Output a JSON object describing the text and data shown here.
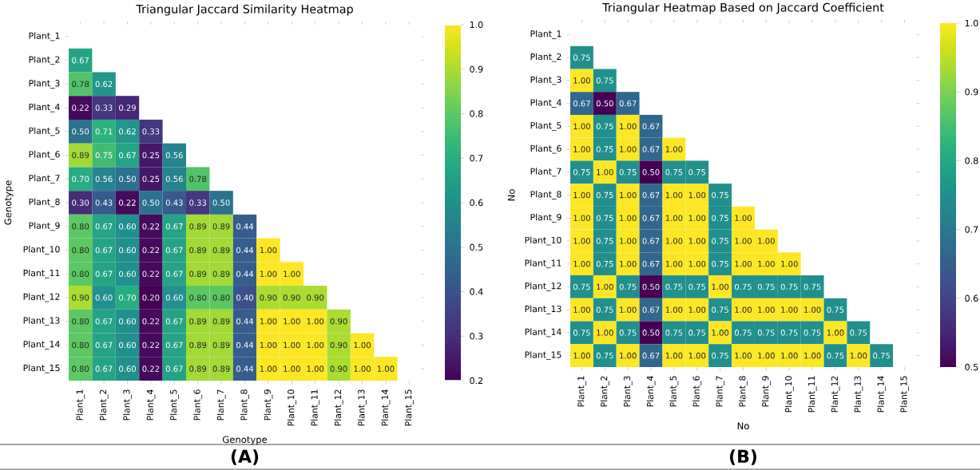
{
  "chart_data": [
    {
      "type": "heatmap",
      "title": "Triangular Jaccard Similarity Heatmap",
      "xlabel": "Genotype",
      "ylabel": "Genotype",
      "categories": [
        "Plant_1",
        "Plant_2",
        "Plant_3",
        "Plant_4",
        "Plant_5",
        "Plant_6",
        "Plant_7",
        "Plant_8",
        "Plant_9",
        "Plant_10",
        "Plant_11",
        "Plant_12",
        "Plant_13",
        "Plant_14",
        "Plant_15"
      ],
      "y_categories": [
        "Plant_1",
        "Plant_2",
        "Plant_3",
        "Plant_4",
        "Plant_5",
        "Plant_6",
        "Plant_7",
        "Plant_8",
        "Plant_9",
        "Plant_10",
        "Plant_11",
        "Plant_12",
        "Plant_13",
        "Plant_14",
        "Plant_15"
      ],
      "cells": [
        [
          null,
          null,
          null,
          null,
          null,
          null,
          null,
          null,
          null,
          null,
          null,
          null,
          null,
          null,
          null
        ],
        [
          0.67,
          null,
          null,
          null,
          null,
          null,
          null,
          null,
          null,
          null,
          null,
          null,
          null,
          null,
          null
        ],
        [
          0.78,
          0.62,
          null,
          null,
          null,
          null,
          null,
          null,
          null,
          null,
          null,
          null,
          null,
          null,
          null
        ],
        [
          0.22,
          0.33,
          0.29,
          null,
          null,
          null,
          null,
          null,
          null,
          null,
          null,
          null,
          null,
          null,
          null
        ],
        [
          0.5,
          0.71,
          0.62,
          0.33,
          null,
          null,
          null,
          null,
          null,
          null,
          null,
          null,
          null,
          null,
          null
        ],
        [
          0.89,
          0.75,
          0.67,
          0.25,
          0.56,
          null,
          null,
          null,
          null,
          null,
          null,
          null,
          null,
          null,
          null
        ],
        [
          0.7,
          0.56,
          0.5,
          0.25,
          0.56,
          0.78,
          null,
          null,
          null,
          null,
          null,
          null,
          null,
          null,
          null
        ],
        [
          0.3,
          0.43,
          0.22,
          0.5,
          0.43,
          0.33,
          0.5,
          null,
          null,
          null,
          null,
          null,
          null,
          null,
          null
        ],
        [
          0.8,
          0.67,
          0.6,
          0.22,
          0.67,
          0.89,
          0.89,
          0.44,
          null,
          null,
          null,
          null,
          null,
          null,
          null
        ],
        [
          0.8,
          0.67,
          0.6,
          0.22,
          0.67,
          0.89,
          0.89,
          0.44,
          1.0,
          null,
          null,
          null,
          null,
          null,
          null
        ],
        [
          0.8,
          0.67,
          0.6,
          0.22,
          0.67,
          0.89,
          0.89,
          0.44,
          1.0,
          1.0,
          null,
          null,
          null,
          null,
          null
        ],
        [
          0.9,
          0.6,
          0.7,
          0.2,
          0.6,
          0.8,
          0.8,
          0.4,
          0.9,
          0.9,
          0.9,
          null,
          null,
          null,
          null
        ],
        [
          0.8,
          0.67,
          0.6,
          0.22,
          0.67,
          0.89,
          0.89,
          0.44,
          1.0,
          1.0,
          1.0,
          0.9,
          null,
          null,
          null
        ],
        [
          0.8,
          0.67,
          0.6,
          0.22,
          0.67,
          0.89,
          0.89,
          0.44,
          1.0,
          1.0,
          1.0,
          0.9,
          1.0,
          null,
          null
        ],
        [
          0.8,
          0.67,
          0.6,
          0.22,
          0.67,
          0.89,
          0.89,
          0.44,
          1.0,
          1.0,
          1.0,
          0.9,
          1.0,
          1.0,
          null
        ]
      ],
      "cell_labels": [
        [
          null,
          null,
          null,
          null,
          null,
          null,
          null,
          null,
          null,
          null,
          null,
          null,
          null,
          null,
          null
        ],
        [
          "0.67",
          null,
          null,
          null,
          null,
          null,
          null,
          null,
          null,
          null,
          null,
          null,
          null,
          null,
          null
        ],
        [
          "0.78",
          "0.62",
          null,
          null,
          null,
          null,
          null,
          null,
          null,
          null,
          null,
          null,
          null,
          null,
          null
        ],
        [
          "0.22",
          "0.33",
          "0.29",
          null,
          null,
          null,
          null,
          null,
          null,
          null,
          null,
          null,
          null,
          null,
          null
        ],
        [
          "0.50",
          "0.71",
          "0.62",
          "0.33",
          null,
          null,
          null,
          null,
          null,
          null,
          null,
          null,
          null,
          null,
          null
        ],
        [
          "0.89",
          "0.75",
          "0.67",
          "0.25",
          "0.56",
          null,
          null,
          null,
          null,
          null,
          null,
          null,
          null,
          null,
          null
        ],
        [
          "0.70",
          "0.56",
          "0.50",
          "0.25",
          "0.56",
          "0.78",
          null,
          null,
          null,
          null,
          null,
          null,
          null,
          null,
          null
        ],
        [
          "0.30",
          "0.43",
          "0.22",
          "0.50",
          "0.43",
          "0.33",
          "0.50",
          null,
          null,
          null,
          null,
          null,
          null,
          null,
          null
        ],
        [
          "0.80",
          "0.67",
          "0.60",
          "0.22",
          "0.67",
          "0.89",
          "0.89",
          "0.44",
          null,
          null,
          null,
          null,
          null,
          null,
          null
        ],
        [
          "0.80",
          "0.67",
          "0.60",
          "0.22",
          "0.67",
          "0.89",
          "0.89",
          "0.44",
          "1.00",
          null,
          null,
          null,
          null,
          null,
          null
        ],
        [
          "0.80",
          "0.67",
          "0.60",
          "0.22",
          "0.67",
          "0.89",
          "0.89",
          "0.44",
          "1.00",
          "1.00",
          null,
          null,
          null,
          null,
          null
        ],
        [
          "0.90",
          "0.60",
          "0.70",
          "0.20",
          "0.60",
          "0.80",
          "0.80",
          "0.40",
          "0.90",
          "0.90",
          "0.90",
          null,
          null,
          null,
          null
        ],
        [
          "0.80",
          "0.67",
          "0.60",
          "0.22",
          "0.67",
          "0.89",
          "0.89",
          "0.44",
          "1.00",
          "1.00",
          "1.00",
          "0.90",
          null,
          null,
          null
        ],
        [
          "0.80",
          "0.67",
          "0.60",
          "0.22",
          "0.67",
          "0.89",
          "0.89",
          "0.44",
          "1.00",
          "1.00",
          "1.00",
          "0.90",
          "1.00",
          null,
          null
        ],
        [
          "0.80",
          "0.67",
          "0.60",
          "0.22",
          "0.67",
          "0.89",
          "0.89",
          "0.44",
          "1.00",
          "1.00",
          "1.00",
          "0.90",
          "1.00",
          "1.00",
          null
        ]
      ],
      "clim": [
        0.2,
        1.0
      ],
      "cticks": [
        0.2,
        0.3,
        0.4,
        0.5,
        0.6,
        0.7,
        0.8,
        0.9,
        {
          "value": 1.0,
          "label": "1.0"
        }
      ],
      "annotations": [
        "(A)"
      ]
    },
    {
      "type": "heatmap",
      "title": "Triangular Heatmap Based on Jaccard Coefficient",
      "xlabel": "No",
      "ylabel": "No",
      "categories": [
        "Plant_1",
        "Plant_2",
        "Plant_3",
        "Plant_4",
        "Plant_5",
        "Plant_6",
        "Plant_7",
        "Plant_8",
        "Plant_9",
        "Plant_10",
        "Plant_11",
        "Plant_12",
        "Plant_13",
        "Plant_14",
        "Plant_15"
      ],
      "y_categories": [
        "Plant_1",
        "Plant_2",
        "Plant_3",
        "Plant_4",
        "Plant_5",
        "Plant_6",
        "Plant_7",
        "Plant_8",
        "Plant_9",
        "Plant_10",
        "Plant_11",
        "Plant_12",
        "Plant_13",
        "Plant_14",
        "Plant_15"
      ],
      "cells": [
        [
          null,
          null,
          null,
          null,
          null,
          null,
          null,
          null,
          null,
          null,
          null,
          null,
          null,
          null,
          null
        ],
        [
          0.75,
          null,
          null,
          null,
          null,
          null,
          null,
          null,
          null,
          null,
          null,
          null,
          null,
          null,
          null
        ],
        [
          1.0,
          0.75,
          null,
          null,
          null,
          null,
          null,
          null,
          null,
          null,
          null,
          null,
          null,
          null,
          null
        ],
        [
          0.67,
          0.5,
          0.67,
          null,
          null,
          null,
          null,
          null,
          null,
          null,
          null,
          null,
          null,
          null,
          null
        ],
        [
          1.0,
          0.75,
          1.0,
          0.67,
          null,
          null,
          null,
          null,
          null,
          null,
          null,
          null,
          null,
          null,
          null
        ],
        [
          1.0,
          0.75,
          1.0,
          0.67,
          1.0,
          null,
          null,
          null,
          null,
          null,
          null,
          null,
          null,
          null,
          null
        ],
        [
          0.75,
          1.0,
          0.75,
          0.5,
          0.75,
          0.75,
          null,
          null,
          null,
          null,
          null,
          null,
          null,
          null,
          null
        ],
        [
          1.0,
          0.75,
          1.0,
          0.67,
          1.0,
          1.0,
          0.75,
          null,
          null,
          null,
          null,
          null,
          null,
          null,
          null
        ],
        [
          1.0,
          0.75,
          1.0,
          0.67,
          1.0,
          1.0,
          0.75,
          1.0,
          null,
          null,
          null,
          null,
          null,
          null,
          null
        ],
        [
          1.0,
          0.75,
          1.0,
          0.67,
          1.0,
          1.0,
          0.75,
          1.0,
          1.0,
          null,
          null,
          null,
          null,
          null,
          null
        ],
        [
          1.0,
          0.75,
          1.0,
          0.67,
          1.0,
          1.0,
          0.75,
          1.0,
          1.0,
          1.0,
          null,
          null,
          null,
          null,
          null
        ],
        [
          0.75,
          1.0,
          0.75,
          0.5,
          0.75,
          0.75,
          1.0,
          0.75,
          0.75,
          0.75,
          0.75,
          null,
          null,
          null,
          null
        ],
        [
          1.0,
          0.75,
          1.0,
          0.67,
          1.0,
          1.0,
          0.75,
          1.0,
          1.0,
          1.0,
          1.0,
          0.75,
          null,
          null,
          null
        ],
        [
          0.75,
          1.0,
          0.75,
          0.5,
          0.75,
          0.75,
          1.0,
          0.75,
          0.75,
          0.75,
          0.75,
          1.0,
          0.75,
          null,
          null
        ],
        [
          1.0,
          0.75,
          1.0,
          0.67,
          1.0,
          1.0,
          0.75,
          1.0,
          1.0,
          1.0,
          1.0,
          0.75,
          1.0,
          0.75,
          null
        ]
      ],
      "cell_labels": [
        [
          null,
          null,
          null,
          null,
          null,
          null,
          null,
          null,
          null,
          null,
          null,
          null,
          null,
          null,
          null
        ],
        [
          "0.75",
          null,
          null,
          null,
          null,
          null,
          null,
          null,
          null,
          null,
          null,
          null,
          null,
          null,
          null
        ],
        [
          "1.00",
          "0.75",
          null,
          null,
          null,
          null,
          null,
          null,
          null,
          null,
          null,
          null,
          null,
          null,
          null
        ],
        [
          "0.67",
          "0.50",
          "0.67",
          null,
          null,
          null,
          null,
          null,
          null,
          null,
          null,
          null,
          null,
          null,
          null
        ],
        [
          "1.00",
          "0.75",
          "1.00",
          "0.67",
          null,
          null,
          null,
          null,
          null,
          null,
          null,
          null,
          null,
          null,
          null
        ],
        [
          "1.00",
          "0.75",
          "1.00",
          "0.67",
          "1.00",
          null,
          null,
          null,
          null,
          null,
          null,
          null,
          null,
          null,
          null
        ],
        [
          "0.75",
          "1.00",
          "0.75",
          "0.50",
          "0.75",
          "0.75",
          null,
          null,
          null,
          null,
          null,
          null,
          null,
          null,
          null
        ],
        [
          "1.00",
          "0.75",
          "1.00",
          "0.67",
          "1.00",
          "1.00",
          "0.75",
          null,
          null,
          null,
          null,
          null,
          null,
          null,
          null
        ],
        [
          "1.00",
          "0.75",
          "1.00",
          "0.67",
          "1.00",
          "1.00",
          "0.75",
          "1.00",
          null,
          null,
          null,
          null,
          null,
          null,
          null
        ],
        [
          "1.00",
          "0.75",
          "1.00",
          "0.67",
          "1.00",
          "1.00",
          "0.75",
          "1.00",
          "1.00",
          null,
          null,
          null,
          null,
          null,
          null
        ],
        [
          "1.00",
          "0.75",
          "1.00",
          "0.67",
          "1.00",
          "1.00",
          "0.75",
          "1.00",
          "1.00",
          "1.00",
          null,
          null,
          null,
          null,
          null
        ],
        [
          "0.75",
          "1.00",
          "0.75",
          "0.50",
          "0.75",
          "0.75",
          "1.00",
          "0.75",
          "0.75",
          "0.75",
          "0.75",
          null,
          null,
          null,
          null
        ],
        [
          "1.00",
          "0.75",
          "1.00",
          "0.67",
          "1.00",
          "1.00",
          "0.75",
          "1.00",
          "1.00",
          "1.00",
          "1.00",
          "0.75",
          null,
          null,
          null
        ],
        [
          "0.75",
          "1.00",
          "0.75",
          "0.50",
          "0.75",
          "0.75",
          "1.00",
          "0.75",
          "0.75",
          "0.75",
          "0.75",
          "1.00",
          "0.75",
          null,
          null
        ],
        [
          "1.00",
          "0.75",
          "1.00",
          "0.67",
          "1.00",
          "1.00",
          "0.75",
          "1.00",
          "1.00",
          "1.00",
          "1.00",
          "0.75",
          "1.00",
          "0.75",
          null
        ]
      ],
      "clim": [
        0.5,
        1.0
      ],
      "cticks": [
        0.5,
        0.6,
        0.7,
        0.8,
        0.9,
        {
          "value": 1.0,
          "label": "1.0"
        }
      ],
      "annotations": [
        "(B)"
      ]
    }
  ]
}
